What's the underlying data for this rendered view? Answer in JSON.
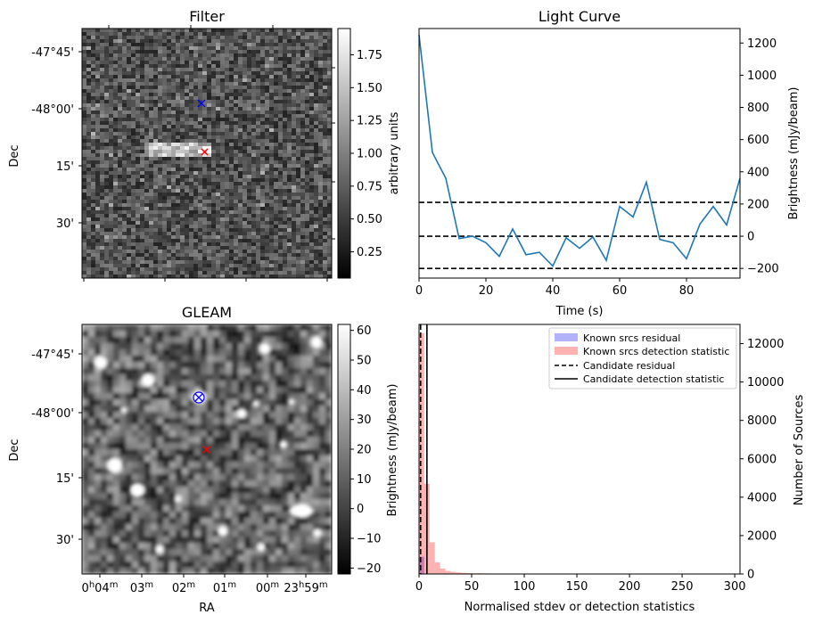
{
  "chart_data": [
    {
      "type": "heatmap",
      "title": "Filter",
      "ylabel": "Dec",
      "ytick_labels": [
        "-47°45'",
        "-48°00'",
        "15'",
        "30'"
      ],
      "colorbar": {
        "label": "arbitrary units",
        "ticks": [
          0.25,
          0.5,
          0.75,
          1.0,
          1.25,
          1.5,
          1.75
        ],
        "tick_labels": [
          "0.25",
          "0.50",
          "0.75",
          "1.00",
          "1.25",
          "1.50",
          "1.75"
        ],
        "range": [
          0.05,
          1.95
        ],
        "cmap": "gray"
      },
      "markers": [
        {
          "symbol": "x",
          "color": "#0000ff"
        },
        {
          "symbol": "x",
          "color": "#ff0000"
        }
      ]
    },
    {
      "type": "line",
      "title": "Light Curve",
      "xlabel": "Time (s)",
      "ylabel": "Brightness (mJy/beam)",
      "xlim": [
        0,
        96
      ],
      "ylim": [
        -260,
        1290
      ],
      "xticks": [
        0,
        20,
        40,
        60,
        80
      ],
      "yticks": [
        -200,
        0,
        200,
        400,
        600,
        800,
        1000,
        1200
      ],
      "series": [
        {
          "color": "#1f77b4",
          "x": [
            0,
            4,
            8,
            12,
            16,
            20,
            24,
            28,
            32,
            36,
            40,
            44,
            48,
            52,
            56,
            60,
            64,
            68,
            72,
            76,
            80,
            84,
            88,
            92,
            96
          ],
          "y": [
            1250,
            520,
            360,
            -15,
            0,
            -40,
            -125,
            45,
            -115,
            -100,
            -185,
            -10,
            -75,
            -5,
            -150,
            185,
            120,
            335,
            -20,
            -40,
            -140,
            75,
            185,
            70,
            360
          ]
        }
      ],
      "hlines": [
        210,
        0,
        -200
      ],
      "hline_color": "#000000",
      "hline_style": "dashed"
    },
    {
      "type": "heatmap",
      "title": "GLEAM",
      "xlabel": "RA",
      "ylabel": "Dec",
      "ytick_labels": [
        "-47°45'",
        "-48°00'",
        "15'",
        "30'"
      ],
      "xtick_labels": [
        {
          "main": "0",
          "sup1": "h",
          "mid": "04",
          "sup2": "m"
        },
        {
          "main": "",
          "sup1": "",
          "mid": "03",
          "sup2": "m"
        },
        {
          "main": "",
          "sup1": "",
          "mid": "02",
          "sup2": "m"
        },
        {
          "main": "",
          "sup1": "",
          "mid": "01",
          "sup2": "m"
        },
        {
          "main": "",
          "sup1": "",
          "mid": "00",
          "sup2": "m"
        },
        {
          "main": "23",
          "sup1": "h",
          "mid": "59",
          "sup2": "m"
        }
      ],
      "colorbar": {
        "label": "Brightness (mJy/beam)",
        "ticks": [
          -20,
          -10,
          0,
          10,
          20,
          30,
          40,
          50,
          60
        ],
        "tick_labels": [
          "−20",
          "−10",
          "0",
          "10",
          "20",
          "30",
          "40",
          "50",
          "60"
        ],
        "range": [
          -22,
          62
        ],
        "cmap": "gray"
      },
      "markers": [
        {
          "symbol": "x",
          "color": "#0000ff",
          "circled": true
        },
        {
          "symbol": "x",
          "color": "#ff0000"
        }
      ]
    },
    {
      "type": "bar",
      "xlabel": "Normalised stdev or detection statistics",
      "ylabel": "Number of Sources",
      "xlim": [
        0,
        305
      ],
      "ylim": [
        0,
        13000
      ],
      "xticks": [
        0,
        50,
        100,
        150,
        200,
        250,
        300
      ],
      "yticks": [
        0,
        2000,
        4000,
        6000,
        8000,
        10000,
        12000
      ],
      "bin_width": 5,
      "series": [
        {
          "name": "Known srcs residual",
          "color": "#0000ff",
          "alpha": 0.3,
          "bins": [
            0
          ],
          "counts": [
            900
          ]
        },
        {
          "name": "Known srcs detection statistic",
          "color": "#ff0000",
          "alpha": 0.3,
          "bins": [
            0,
            5,
            10,
            15,
            20,
            25,
            30,
            35,
            40,
            45,
            50,
            55,
            60,
            65,
            70,
            75,
            80,
            90,
            100,
            110,
            120,
            130,
            140,
            150,
            160,
            170,
            190,
            210,
            230,
            250,
            285
          ],
          "counts": [
            12550,
            4700,
            1650,
            600,
            280,
            160,
            110,
            80,
            60,
            45,
            35,
            40,
            30,
            25,
            20,
            20,
            15,
            15,
            10,
            10,
            10,
            8,
            8,
            8,
            6,
            6,
            5,
            5,
            4,
            4,
            3
          ]
        }
      ],
      "vlines": [
        {
          "name": "Candidate residual",
          "x": 1.5,
          "style": "dashed",
          "color": "#000000"
        },
        {
          "name": "Candidate detection statistic",
          "x": 7.5,
          "style": "solid",
          "color": "#000000"
        }
      ],
      "legend": "top-right"
    }
  ]
}
